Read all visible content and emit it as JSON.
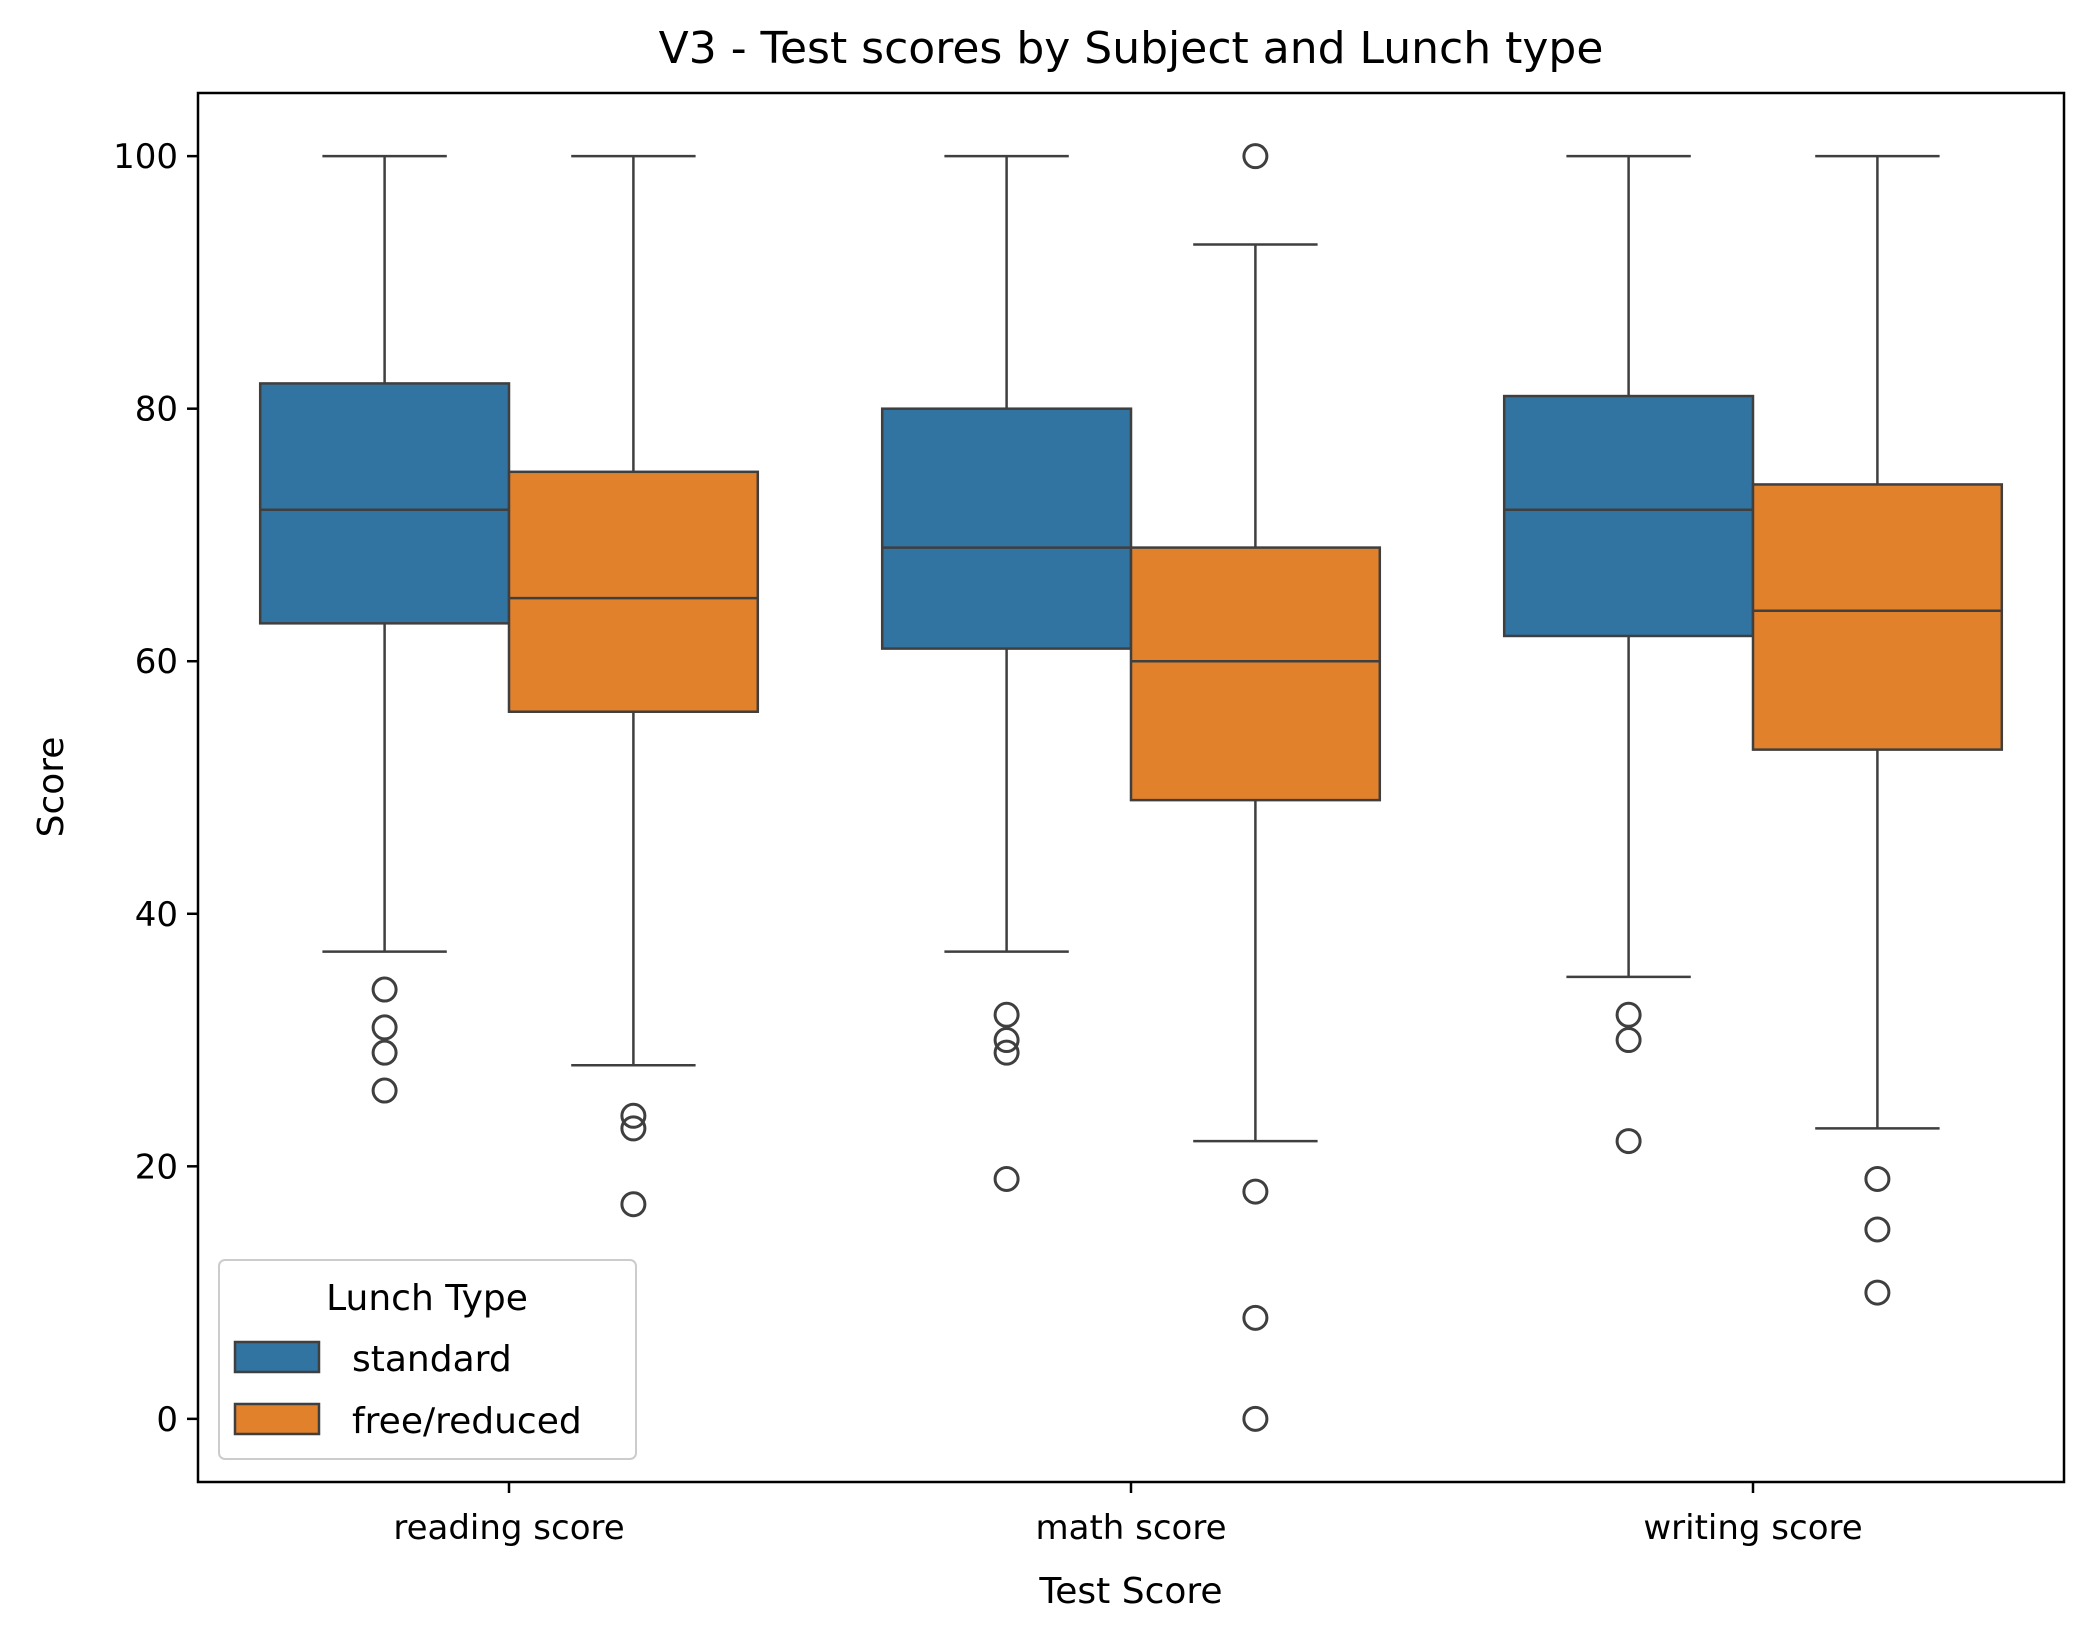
{
  "chart_data": {
    "type": "box",
    "title": "V3 - Test scores by Subject and Lunch type",
    "xlabel": "Test Score",
    "ylabel": "Score",
    "ylim": [
      -5,
      105
    ],
    "yticks": [
      0,
      20,
      40,
      60,
      80,
      100
    ],
    "grid": false,
    "categories": [
      "reading score",
      "math score",
      "writing score"
    ],
    "legend": {
      "title": "Lunch Type",
      "placement": "lower-left"
    },
    "series": [
      {
        "name": "standard",
        "color": "#3274a1",
        "boxes": [
          {
            "whisker_low": 37,
            "q1": 63,
            "median": 72,
            "q3": 82,
            "whisker_high": 100,
            "outliers": [
              34,
              31,
              29,
              26
            ]
          },
          {
            "whisker_low": 37,
            "q1": 61,
            "median": 69,
            "q3": 80,
            "whisker_high": 100,
            "outliers": [
              32,
              30,
              29,
              19
            ]
          },
          {
            "whisker_low": 35,
            "q1": 62,
            "median": 72,
            "q3": 81,
            "whisker_high": 100,
            "outliers": [
              32,
              30,
              22
            ]
          }
        ]
      },
      {
        "name": "free/reduced",
        "color": "#e1812c",
        "boxes": [
          {
            "whisker_low": 28,
            "q1": 56,
            "median": 65,
            "q3": 75,
            "whisker_high": 100,
            "outliers": [
              24,
              23,
              17
            ]
          },
          {
            "whisker_low": 22,
            "q1": 49,
            "median": 60,
            "q3": 69,
            "whisker_high": 93,
            "outliers": [
              100,
              18,
              8,
              0
            ]
          },
          {
            "whisker_low": 23,
            "q1": 53,
            "median": 64,
            "q3": 74,
            "whisker_high": 100,
            "outliers": [
              19,
              15,
              10
            ]
          }
        ]
      }
    ]
  }
}
